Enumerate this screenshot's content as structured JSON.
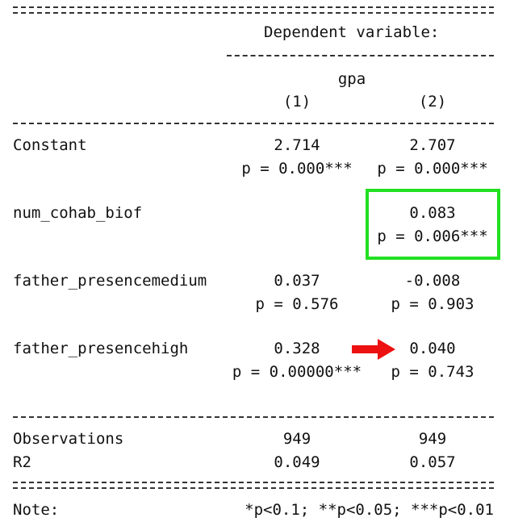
{
  "header": {
    "dependent_variable": "Dependent variable:",
    "variable_name": "gpa",
    "columns": [
      "(1)",
      "(2)"
    ]
  },
  "rows": [
    {
      "label": "Constant",
      "col1_coef": "2.714",
      "col1_p": "p = 0.000***",
      "col2_coef": "2.707",
      "col2_p": "p = 0.000***"
    },
    {
      "label": "num_cohab_biof",
      "col1_coef": "",
      "col1_p": "",
      "col2_coef": "0.083",
      "col2_p": "p = 0.006***"
    },
    {
      "label": "father_presencemedium",
      "col1_coef": "0.037",
      "col1_p": "p = 0.576",
      "col2_coef": "-0.008",
      "col2_p": "p = 0.903"
    },
    {
      "label": "father_presencehigh",
      "col1_coef": "0.328",
      "col1_p": "p = 0.00000***",
      "col2_coef": "0.040",
      "col2_p": "p = 0.743"
    }
  ],
  "stats": [
    {
      "label": "Observations",
      "col1": "949",
      "col2": "949"
    },
    {
      "label": "R2",
      "col1": "0.049",
      "col2": "0.057"
    }
  ],
  "note": {
    "label": "Note:",
    "text": "*p<0.1; **p<0.05; ***p<0.01"
  },
  "annotations": {
    "highlight_color": "#22e022",
    "arrow_color": "#ee1111"
  }
}
